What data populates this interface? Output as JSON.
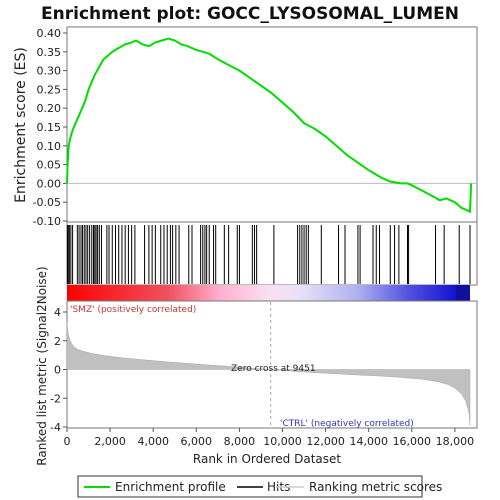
{
  "title": "Enrichment plot: GOCC_LYSOSOMAL_LUMEN",
  "colors": {
    "enrichment_line": "#00dd00",
    "hits": "#000000",
    "ranking_fill": "#c0c0c0",
    "pos_label": "#cc3333",
    "neg_label": "#3333bb",
    "bar_pos": "#ff0000",
    "bar_neg": "#0000ff"
  },
  "labels": {
    "pos": "'SMZ' (positively correlated)",
    "neg": "'CTRL' (negatively correlated)",
    "zero_cross": "Zero cross at 9451"
  },
  "legend": {
    "enrichment": "Enrichment profile",
    "hits": "Hits",
    "ranking": "Ranking metric scores"
  },
  "chart_data": [
    {
      "type": "line",
      "name": "enrichment",
      "ylabel": "Enrichment score (ES)",
      "ylim": [
        -0.1,
        0.4
      ],
      "xlim": [
        0,
        18700
      ],
      "yticks": [
        "0.40",
        "0.35",
        "0.30",
        "0.25",
        "0.20",
        "0.15",
        "0.10",
        "0.05",
        "0.00",
        "-0.05",
        "-0.10"
      ],
      "ytick_values": [
        0.4,
        0.35,
        0.3,
        0.25,
        0.2,
        0.15,
        0.1,
        0.05,
        0.0,
        -0.05,
        -0.1
      ],
      "x": [
        0,
        30,
        80,
        150,
        250,
        400,
        550,
        700,
        850,
        1000,
        1150,
        1300,
        1500,
        1700,
        1900,
        2100,
        2400,
        2700,
        3000,
        3200,
        3500,
        3800,
        4100,
        4400,
        4700,
        5000,
        5300,
        5600,
        6000,
        6300,
        6600,
        7000,
        7500,
        8000,
        8500,
        9000,
        9500,
        10000,
        10500,
        11000,
        11500,
        12000,
        12500,
        13000,
        13500,
        14000,
        14300,
        14600,
        15000,
        15500,
        15800,
        16000,
        16500,
        17000,
        17300,
        17600,
        18000,
        18300,
        18700,
        18750
      ],
      "y": [
        0.0,
        0.05,
        0.1,
        0.12,
        0.14,
        0.16,
        0.18,
        0.2,
        0.22,
        0.25,
        0.27,
        0.29,
        0.31,
        0.33,
        0.34,
        0.35,
        0.36,
        0.37,
        0.375,
        0.38,
        0.37,
        0.365,
        0.375,
        0.38,
        0.385,
        0.38,
        0.37,
        0.365,
        0.355,
        0.35,
        0.345,
        0.33,
        0.315,
        0.3,
        0.28,
        0.26,
        0.24,
        0.215,
        0.19,
        0.16,
        0.145,
        0.125,
        0.1,
        0.075,
        0.055,
        0.035,
        0.025,
        0.015,
        0.005,
        0.0,
        0.0,
        -0.005,
        -0.02,
        -0.035,
        -0.045,
        -0.04,
        -0.05,
        -0.065,
        -0.075,
        0.0
      ]
    },
    {
      "type": "line",
      "name": "ranked_list_metric",
      "xlabel": "Rank in Ordered Dataset",
      "ylabel": "Ranked list metric (Signal2Noise)",
      "ylim": [
        -4,
        4
      ],
      "xlim": [
        0,
        18700
      ],
      "xticks": [
        "0",
        "2,000",
        "4,000",
        "6,000",
        "8,000",
        "10,000",
        "12,000",
        "14,000",
        "16,000",
        "18,000"
      ],
      "xtick_values": [
        0,
        2000,
        4000,
        6000,
        8000,
        10000,
        12000,
        14000,
        16000,
        18000
      ],
      "yticks": [
        "4",
        "2",
        "0",
        "-2",
        "-4"
      ],
      "ytick_values": [
        4,
        2,
        0,
        -2,
        -4
      ],
      "zero_cross": 9451,
      "x": [
        0,
        50,
        150,
        300,
        500,
        800,
        1200,
        1800,
        2500,
        3500,
        4500,
        5500,
        6500,
        7500,
        8500,
        9451,
        10500,
        11500,
        12500,
        13500,
        14500,
        15500,
        16500,
        17200,
        17700,
        18000,
        18300,
        18500,
        18650,
        18700
      ],
      "y": [
        3.3,
        2.5,
        2.0,
        1.6,
        1.4,
        1.25,
        1.1,
        0.95,
        0.82,
        0.68,
        0.55,
        0.44,
        0.32,
        0.22,
        0.1,
        0.0,
        -0.12,
        -0.22,
        -0.3,
        -0.38,
        -0.45,
        -0.55,
        -0.68,
        -0.85,
        -1.05,
        -1.3,
        -1.7,
        -2.2,
        -3.0,
        -3.9
      ]
    },
    {
      "type": "scatter",
      "name": "hits",
      "x": [
        20,
        60,
        110,
        180,
        260,
        480,
        560,
        650,
        720,
        800,
        880,
        960,
        1050,
        1150,
        1230,
        1290,
        1350,
        1420,
        1500,
        1600,
        1850,
        1950,
        2100,
        2250,
        2400,
        2550,
        2700,
        2850,
        3000,
        3150,
        3600,
        3800,
        3950,
        4100,
        4350,
        4500,
        4650,
        4800,
        4900,
        5050,
        5200,
        5650,
        5800,
        6200,
        6300,
        6400,
        6480,
        6600,
        6800,
        6900,
        7300,
        7500,
        7900,
        8000,
        8600,
        8700,
        8800,
        9600,
        10700,
        10800,
        10900,
        11000,
        11100,
        11200,
        11800,
        12600,
        12900,
        13500,
        13600,
        14200,
        14350,
        14500,
        15000,
        15200,
        15400,
        15800,
        15850,
        17100,
        17500,
        18200,
        18700
      ]
    }
  ]
}
